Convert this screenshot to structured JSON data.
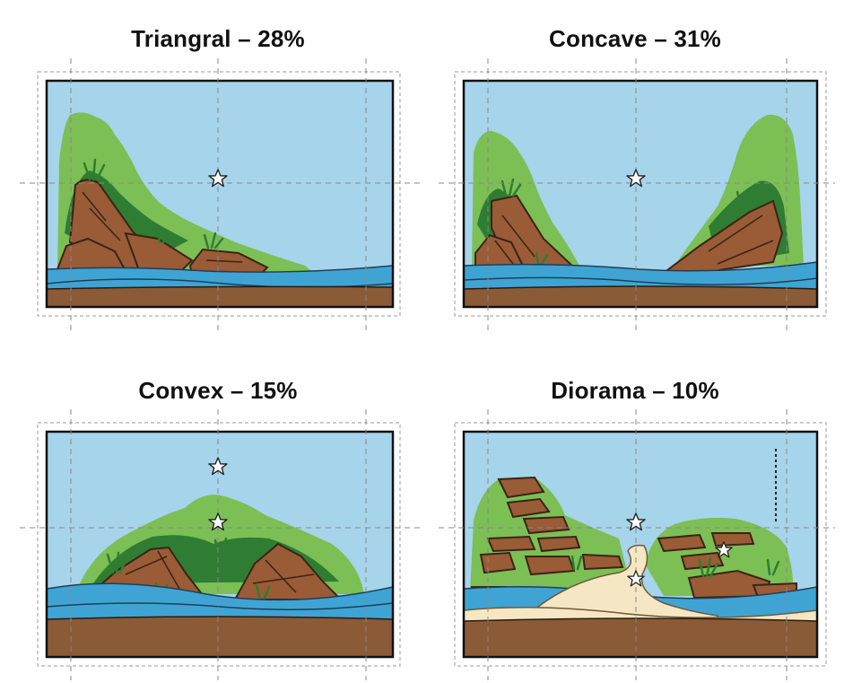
{
  "panels": [
    {
      "name": "Triangral",
      "percent": "28%",
      "title": "Triangral – 28%"
    },
    {
      "name": "Concave",
      "percent": "31%",
      "title": "Concave – 31%"
    },
    {
      "name": "Convex",
      "percent": "15%",
      "title": "Convex – 15%"
    },
    {
      "name": "Diorama",
      "percent": "10%",
      "title": "Diorama – 10%"
    }
  ],
  "colors": {
    "sky": "#a6d4ea",
    "water": "#3fa4d4",
    "substrate": "#8b5a36",
    "sand": "#f6e7c4",
    "rock": "#9a5b37",
    "moss": "#7cbf55",
    "dark_plant": "#2f7d32",
    "frame": "#111111",
    "guide": "#888888"
  },
  "icons": [
    "focal-star-icon"
  ]
}
